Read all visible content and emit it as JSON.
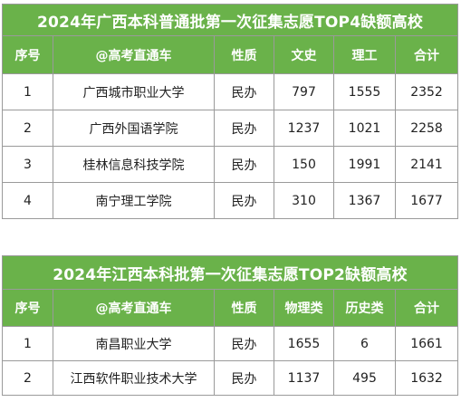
{
  "table1": {
    "title": "2024年广西本科普通批第一次征集志愿TOP4缺额高校",
    "headers": [
      "序号",
      "@高考直通车",
      "性质",
      "文史",
      "理工",
      "合计"
    ],
    "rows": [
      [
        "1",
        "广西城市职业大学",
        "民办",
        "797",
        "1555",
        "2352"
      ],
      [
        "2",
        "广西外国语学院",
        "民办",
        "1237",
        "1021",
        "2258"
      ],
      [
        "3",
        "桂林信息科技学院",
        "民办",
        "150",
        "1991",
        "2141"
      ],
      [
        "4",
        "南宁理工学院",
        "民办",
        "310",
        "1367",
        "1677"
      ]
    ]
  },
  "table2": {
    "title": "2024年江西本科批第一次征集志愿TOP2缺额高校",
    "headers": [
      "序号",
      "@高考直通车",
      "性质",
      "物理类",
      "历史类",
      "合计"
    ],
    "rows": [
      [
        "1",
        "南昌职业大学",
        "民办",
        "1655",
        "6",
        "1661"
      ],
      [
        "2",
        "江西软件职业技术大学",
        "民办",
        "1137",
        "495",
        "1632"
      ]
    ]
  },
  "colors": {
    "header_green": "#6ab24a",
    "header_text": "#ffffff",
    "border": "#9a9a9a"
  }
}
